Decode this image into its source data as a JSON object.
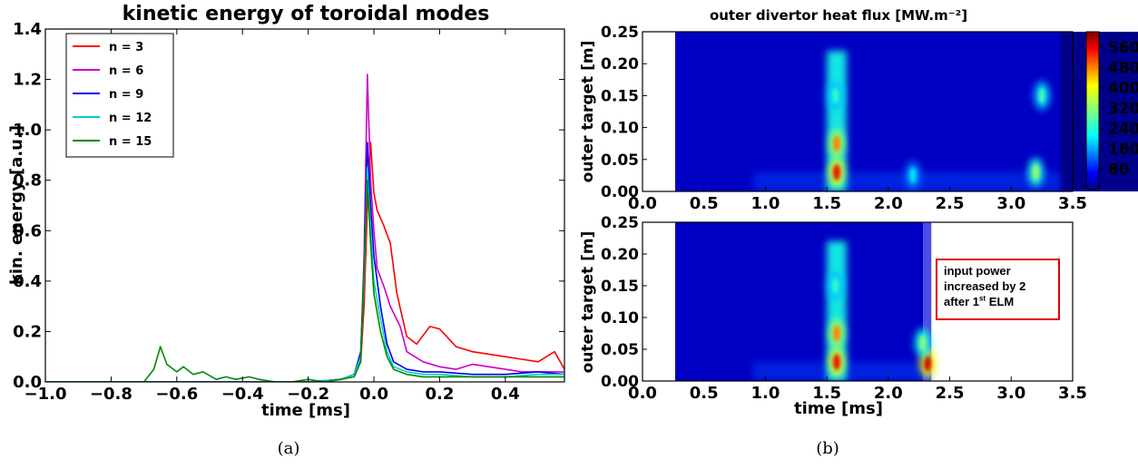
{
  "chart_data": [
    {
      "type": "line",
      "title": "kinetic energy of toroidal modes",
      "xlabel": "time [ms]",
      "ylabel": "kin. energy [a.u.]",
      "xlim": [
        -1.0,
        0.58
      ],
      "ylim": [
        0.0,
        1.4
      ],
      "xticks": [
        "−1.0",
        "−0.8",
        "−0.6",
        "−0.4",
        "−0.2",
        "0.0",
        "0.2",
        "0.4"
      ],
      "xtick_values": [
        -1.0,
        -0.8,
        -0.6,
        -0.4,
        -0.2,
        0.0,
        0.2,
        0.4
      ],
      "yticks": [
        "0.0",
        "0.2",
        "0.4",
        "0.6",
        "0.8",
        "1.0",
        "1.2",
        "1.4"
      ],
      "ytick_values": [
        0.0,
        0.2,
        0.4,
        0.6,
        0.8,
        1.0,
        1.2,
        1.4
      ],
      "legend_position": "top-left",
      "series": [
        {
          "name": "n = 3",
          "color": "#ff0000",
          "x": [
            -1.0,
            -0.2,
            -0.1,
            -0.06,
            -0.04,
            -0.03,
            -0.02,
            -0.01,
            0.0,
            0.01,
            0.02,
            0.03,
            0.05,
            0.07,
            0.1,
            0.13,
            0.17,
            0.2,
            0.25,
            0.3,
            0.35,
            0.4,
            0.45,
            0.5,
            0.55,
            0.58
          ],
          "y": [
            0.0,
            0.0,
            0.01,
            0.03,
            0.08,
            0.3,
            0.7,
            0.95,
            0.75,
            0.68,
            0.65,
            0.62,
            0.55,
            0.35,
            0.18,
            0.15,
            0.22,
            0.21,
            0.14,
            0.12,
            0.11,
            0.1,
            0.09,
            0.08,
            0.12,
            0.05
          ]
        },
        {
          "name": "n = 6",
          "color": "#cc00cc",
          "x": [
            -1.0,
            -0.2,
            -0.1,
            -0.06,
            -0.04,
            -0.03,
            -0.02,
            -0.01,
            0.0,
            0.01,
            0.03,
            0.05,
            0.08,
            0.1,
            0.15,
            0.2,
            0.25,
            0.3,
            0.35,
            0.4,
            0.45,
            0.5,
            0.55,
            0.58
          ],
          "y": [
            0.0,
            0.0,
            0.01,
            0.03,
            0.1,
            0.5,
            1.22,
            0.8,
            0.6,
            0.45,
            0.38,
            0.3,
            0.22,
            0.12,
            0.08,
            0.06,
            0.05,
            0.07,
            0.06,
            0.05,
            0.04,
            0.04,
            0.04,
            0.04
          ]
        },
        {
          "name": "n = 9",
          "color": "#0000ee",
          "x": [
            -1.0,
            -0.2,
            -0.1,
            -0.06,
            -0.04,
            -0.03,
            -0.02,
            -0.01,
            0.0,
            0.02,
            0.04,
            0.06,
            0.1,
            0.15,
            0.2,
            0.3,
            0.4,
            0.5,
            0.58
          ],
          "y": [
            0.0,
            0.0,
            0.01,
            0.03,
            0.12,
            0.45,
            0.95,
            0.7,
            0.5,
            0.3,
            0.15,
            0.08,
            0.05,
            0.04,
            0.04,
            0.03,
            0.03,
            0.04,
            0.03
          ]
        },
        {
          "name": "n = 12",
          "color": "#00cccc",
          "x": [
            -1.0,
            -0.2,
            -0.1,
            -0.06,
            -0.04,
            -0.03,
            -0.02,
            -0.01,
            0.0,
            0.02,
            0.04,
            0.06,
            0.1,
            0.15,
            0.2,
            0.3,
            0.4,
            0.5,
            0.58
          ],
          "y": [
            0.0,
            0.0,
            0.01,
            0.03,
            0.1,
            0.4,
            0.85,
            0.6,
            0.4,
            0.25,
            0.12,
            0.06,
            0.04,
            0.03,
            0.03,
            0.02,
            0.02,
            0.03,
            0.03
          ]
        },
        {
          "name": "n = 15",
          "color": "#008800",
          "x": [
            -1.0,
            -0.7,
            -0.67,
            -0.65,
            -0.63,
            -0.6,
            -0.58,
            -0.55,
            -0.52,
            -0.48,
            -0.45,
            -0.42,
            -0.38,
            -0.35,
            -0.3,
            -0.25,
            -0.2,
            -0.15,
            -0.1,
            -0.06,
            -0.04,
            -0.03,
            -0.02,
            -0.01,
            0.0,
            0.02,
            0.04,
            0.06,
            0.1,
            0.15,
            0.2,
            0.3,
            0.4,
            0.5,
            0.58
          ],
          "y": [
            0.0,
            0.0,
            0.05,
            0.14,
            0.07,
            0.04,
            0.06,
            0.03,
            0.04,
            0.01,
            0.02,
            0.01,
            0.02,
            0.01,
            0.0,
            0.0,
            0.01,
            0.0,
            0.01,
            0.02,
            0.08,
            0.45,
            0.8,
            0.55,
            0.35,
            0.2,
            0.1,
            0.05,
            0.03,
            0.02,
            0.02,
            0.02,
            0.02,
            0.02,
            0.02
          ]
        }
      ]
    },
    {
      "type": "heatmap",
      "title": "outer divertor heat flux [MW.m⁻²]",
      "xlabel": "",
      "ylabel": "outer target [m]",
      "xlim": [
        0.0,
        3.5
      ],
      "ylim": [
        0.0,
        0.25
      ],
      "data_x_range": [
        0.27,
        3.4
      ],
      "xticks": [
        "0.0",
        "0.5",
        "1.0",
        "1.5",
        "2.0",
        "2.5",
        "3.0",
        "3.5"
      ],
      "xtick_values": [
        0.0,
        0.5,
        1.0,
        1.5,
        2.0,
        2.5,
        3.0,
        3.5
      ],
      "yticks": [
        "0.00",
        "0.05",
        "0.10",
        "0.15",
        "0.20",
        "0.25"
      ],
      "ytick_values": [
        0.0,
        0.05,
        0.1,
        0.15,
        0.2,
        0.25
      ],
      "features": [
        {
          "t": 1.58,
          "z": 0.03,
          "level": 560
        },
        {
          "t": 1.58,
          "z": 0.075,
          "level": 480
        },
        {
          "t": 1.57,
          "z": 0.15,
          "level": 250
        },
        {
          "t": 2.2,
          "z": 0.025,
          "level": 200
        },
        {
          "t": 3.2,
          "z": 0.03,
          "level": 330
        },
        {
          "t": 3.25,
          "z": 0.15,
          "level": 260
        }
      ]
    },
    {
      "type": "heatmap",
      "title": "",
      "xlabel": "time [ms]",
      "ylabel": "outer target [m]",
      "xlim": [
        0.0,
        3.5
      ],
      "ylim": [
        0.0,
        0.25
      ],
      "data_x_range": [
        0.27,
        2.35
      ],
      "xticks": [
        "0.0",
        "0.5",
        "1.0",
        "1.5",
        "2.0",
        "2.5",
        "3.0",
        "3.5"
      ],
      "xtick_values": [
        0.0,
        0.5,
        1.0,
        1.5,
        2.0,
        2.5,
        3.0,
        3.5
      ],
      "yticks": [
        "0.00",
        "0.05",
        "0.10",
        "0.15",
        "0.20",
        "0.25"
      ],
      "ytick_values": [
        0.0,
        0.05,
        0.1,
        0.15,
        0.2,
        0.25
      ],
      "features": [
        {
          "t": 1.58,
          "z": 0.03,
          "level": 560
        },
        {
          "t": 1.58,
          "z": 0.075,
          "level": 480
        },
        {
          "t": 1.57,
          "z": 0.15,
          "level": 250
        },
        {
          "t": 2.32,
          "z": 0.028,
          "level": 580
        },
        {
          "t": 2.28,
          "z": 0.06,
          "level": 320
        }
      ]
    }
  ],
  "colorbar": {
    "ticks": [
      "80",
      "160",
      "240",
      "320",
      "400",
      "480",
      "560"
    ],
    "tick_values": [
      80,
      160,
      240,
      320,
      400,
      480,
      560
    ],
    "range": [
      0,
      620
    ]
  },
  "annotation": {
    "line1": "input power",
    "line2": "increased by 2",
    "line3_pre": "after 1",
    "line3_sup": "st",
    "line3_post": " ELM"
  },
  "captions": {
    "left": "(a)",
    "right": "(b)"
  }
}
